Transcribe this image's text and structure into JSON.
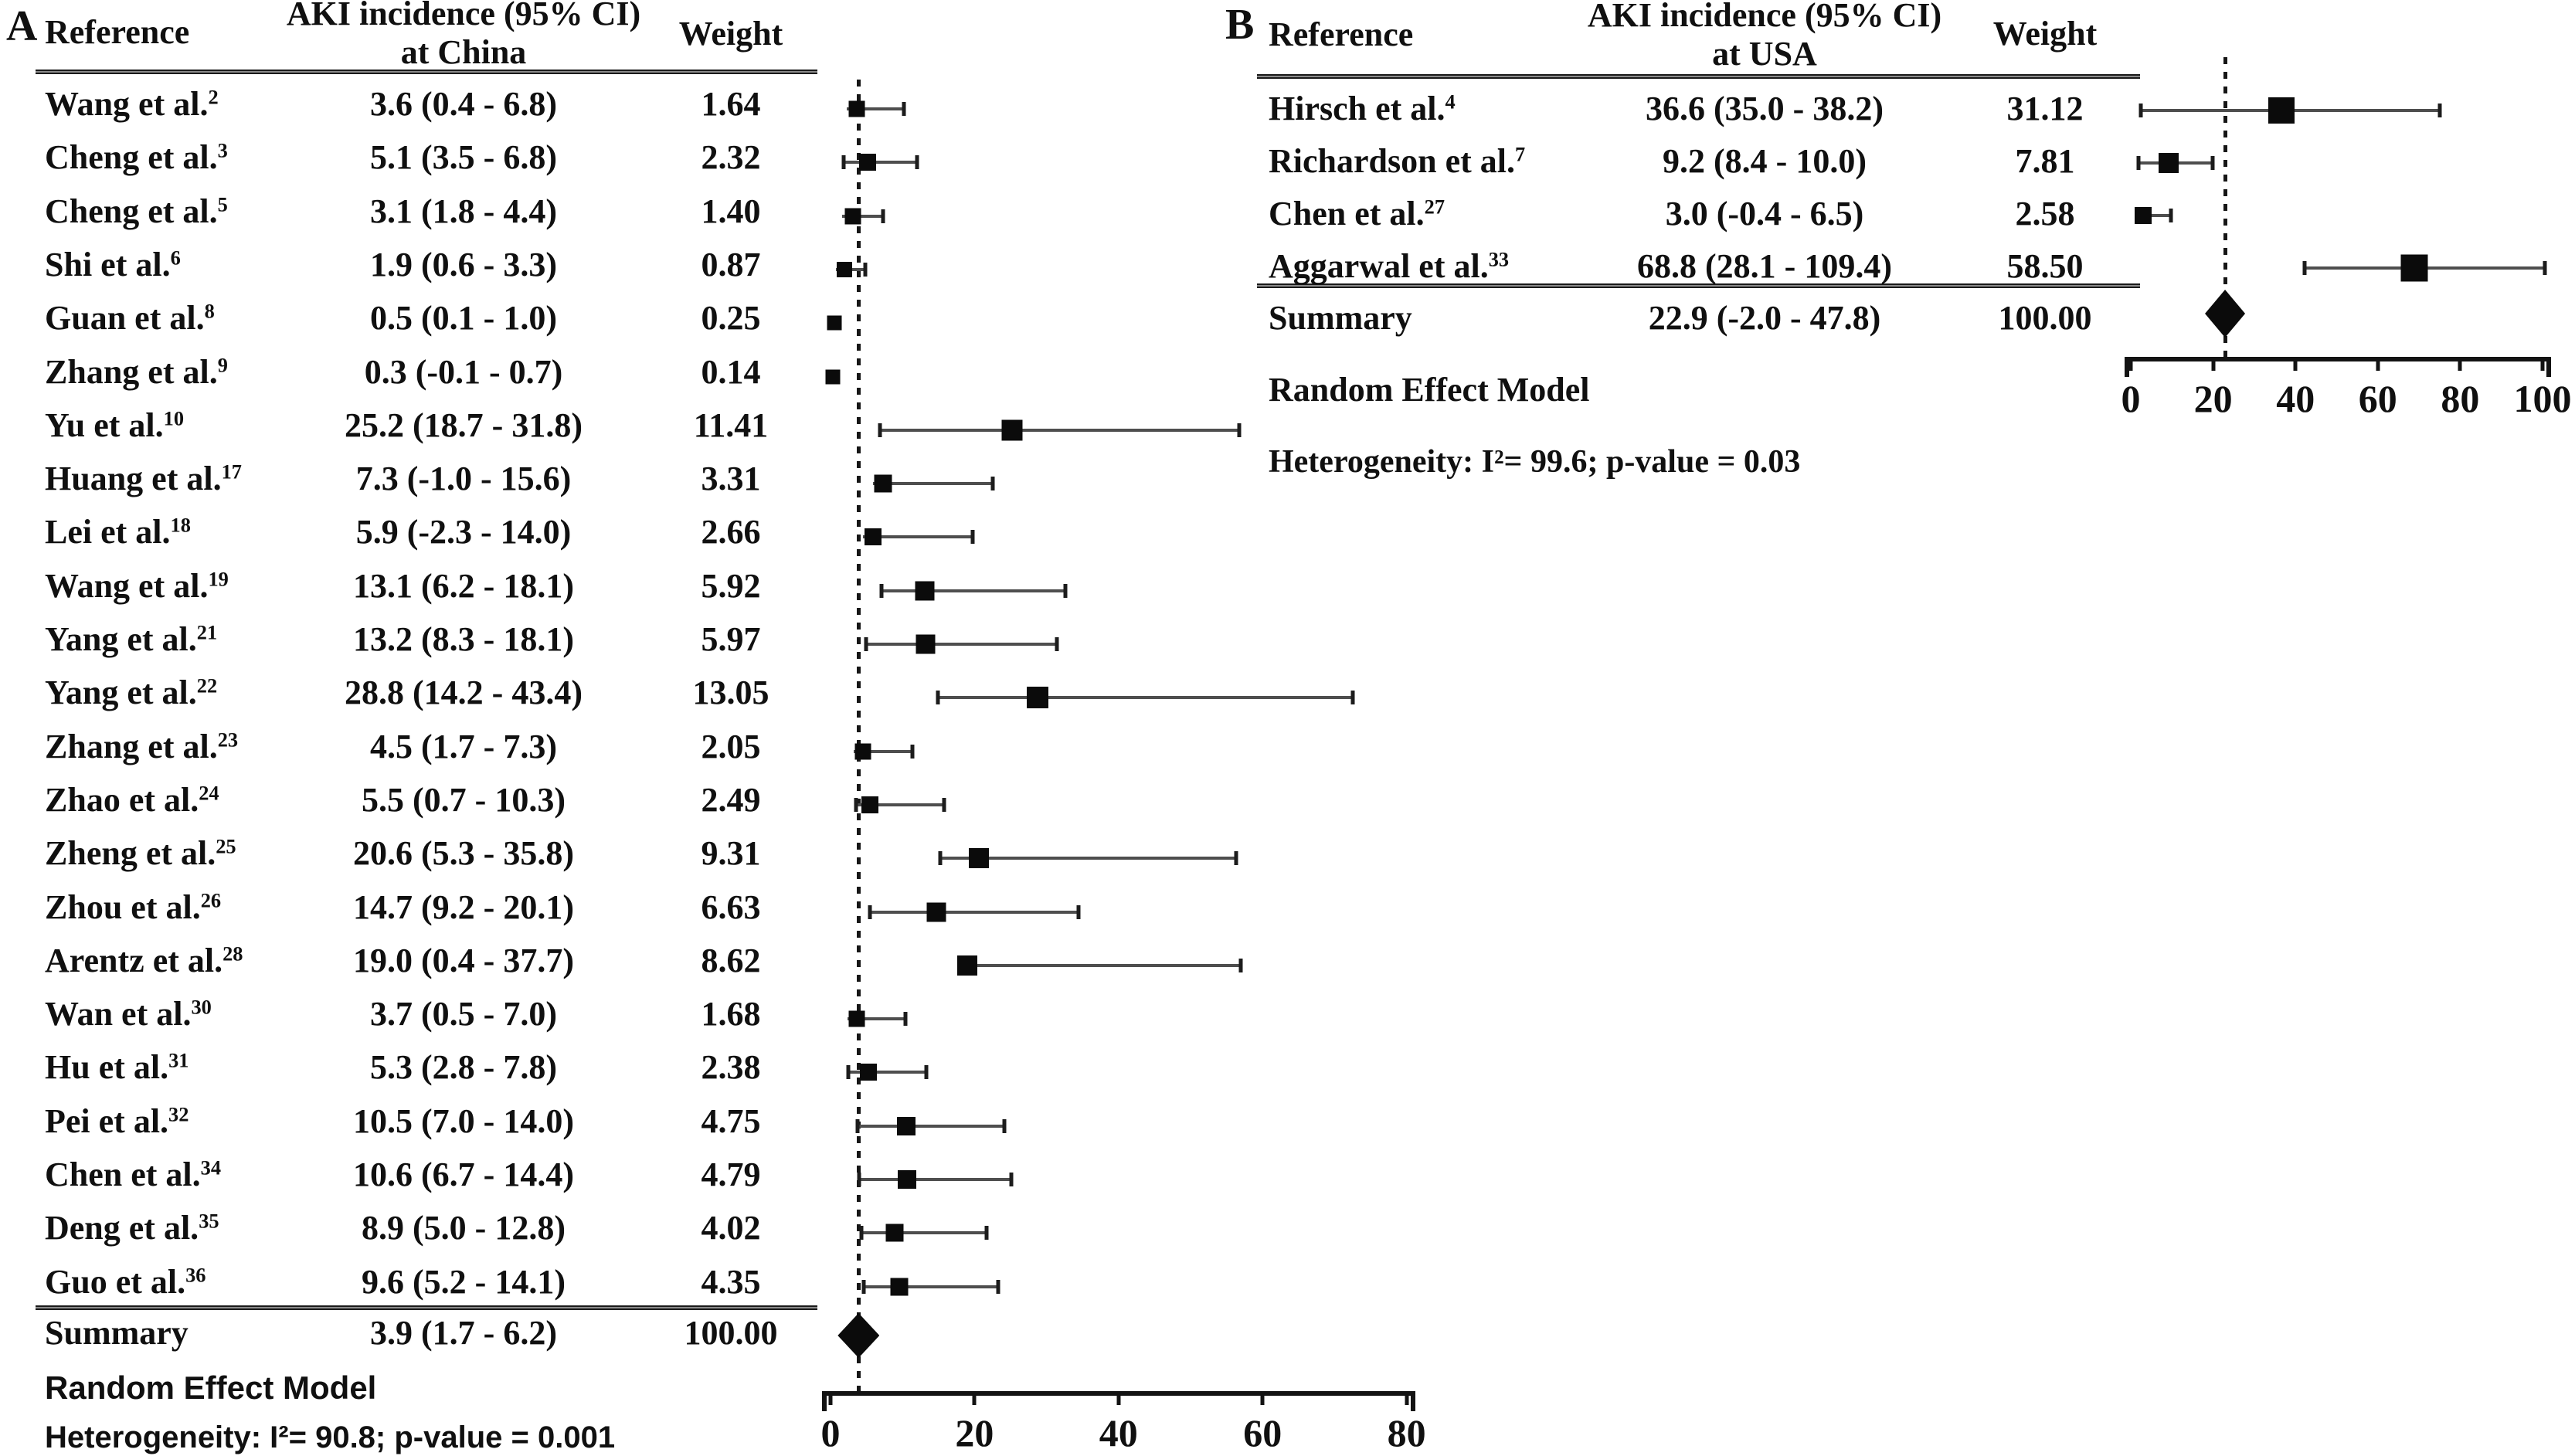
{
  "chart_data": {
    "type": "scatter",
    "variant": "forest-plot-meta-analysis",
    "panels": [
      {
        "panel_label": "A",
        "header": {
          "reference": "Reference",
          "incidence_title": "AKI incidence (95% CI)",
          "incidence_subtitle": "at China",
          "weight": "Weight"
        },
        "axis": {
          "ticks": [
            0,
            20,
            40,
            60,
            80
          ],
          "min": 0,
          "max": 80,
          "grid": false
        },
        "studies": [
          {
            "name": "Wang et al.",
            "sup": "2",
            "incidence_text": "3.6 (0.4 - 6.8)",
            "value": 3.6,
            "ci_lo": 0.4,
            "ci_hi": 6.8,
            "bar_lo": 2.3,
            "bar_hi": 10.4,
            "weight_text": "1.64"
          },
          {
            "name": "Cheng et al.",
            "sup": "3",
            "incidence_text": "5.1 (3.5 - 6.8)",
            "value": 5.1,
            "ci_lo": 3.5,
            "ci_hi": 6.8,
            "bar_lo": 1.6,
            "bar_hi": 12.2,
            "weight_text": "2.32"
          },
          {
            "name": "Cheng et al.",
            "sup": "5",
            "incidence_text": "3.1 (1.8 - 4.4)",
            "value": 3.1,
            "ci_lo": 1.8,
            "ci_hi": 4.4,
            "bar_lo": 1.6,
            "bar_hi": 7.5,
            "weight_text": "1.40"
          },
          {
            "name": "Shi et al.",
            "sup": "6",
            "incidence_text": "1.9 (0.6 - 3.3)",
            "value": 1.9,
            "ci_lo": 0.6,
            "ci_hi": 3.3,
            "bar_lo": 0.8,
            "bar_hi": 5.0,
            "weight_text": "0.87"
          },
          {
            "name": "Guan et al.",
            "sup": "8",
            "incidence_text": "0.5 (0.1 - 1.0)",
            "value": 0.5,
            "ci_lo": 0.1,
            "ci_hi": 1.0,
            "bar_lo": 0.1,
            "bar_hi": 1.3,
            "weight_text": "0.25"
          },
          {
            "name": "Zhang et al.",
            "sup": "9",
            "incidence_text": "0.3 (-0.1 - 0.7)",
            "value": 0.3,
            "ci_lo": -0.1,
            "ci_hi": 0.7,
            "bar_lo": -0.1,
            "bar_hi": 0.9,
            "weight_text": "0.14"
          },
          {
            "name": "Yu et al.",
            "sup": "10",
            "incidence_text": "25.2 (18.7 - 31.8)",
            "value": 25.2,
            "ci_lo": 18.7,
            "ci_hi": 31.8,
            "bar_lo": 6.6,
            "bar_hi": 57.0,
            "weight_text": "11.41"
          },
          {
            "name": "Huang et al.",
            "sup": "17",
            "incidence_text": "7.3 (-1.0 - 15.6)",
            "value": 7.3,
            "ci_lo": -1.0,
            "ci_hi": 15.6,
            "bar_lo": 5.9,
            "bar_hi": 22.8,
            "weight_text": "3.31"
          },
          {
            "name": "Lei et al.",
            "sup": "18",
            "incidence_text": "5.9 (-2.3 - 14.0)",
            "value": 5.9,
            "ci_lo": -2.3,
            "ci_hi": 14.0,
            "bar_lo": 4.5,
            "bar_hi": 20.0,
            "weight_text": "2.66"
          },
          {
            "name": "Wang et al.",
            "sup": "19",
            "incidence_text": "13.1 (6.2 - 18.1)",
            "value": 13.1,
            "ci_lo": 6.2,
            "ci_hi": 18.1,
            "bar_lo": 6.9,
            "bar_hi": 32.8,
            "weight_text": "5.92"
          },
          {
            "name": "Yang et al.",
            "sup": "21",
            "incidence_text": "13.2 (8.3 - 18.1)",
            "value": 13.2,
            "ci_lo": 8.3,
            "ci_hi": 18.1,
            "bar_lo": 4.7,
            "bar_hi": 31.6,
            "weight_text": "5.97"
          },
          {
            "name": "Yang et al.",
            "sup": "22",
            "incidence_text": "28.8 (14.2 - 43.4)",
            "value": 28.8,
            "ci_lo": 14.2,
            "ci_hi": 43.4,
            "bar_lo": 14.7,
            "bar_hi": 72.8,
            "weight_text": "13.05"
          },
          {
            "name": "Zhang et al.",
            "sup": "23",
            "incidence_text": "4.5 (1.7 - 7.3)",
            "value": 4.5,
            "ci_lo": 1.7,
            "ci_hi": 7.3,
            "bar_lo": 3.2,
            "bar_hi": 11.6,
            "weight_text": "2.05"
          },
          {
            "name": "Zhao et al.",
            "sup": "24",
            "incidence_text": "5.5 (0.7 - 10.3)",
            "value": 5.5,
            "ci_lo": 0.7,
            "ci_hi": 10.3,
            "bar_lo": 3.3,
            "bar_hi": 16.0,
            "weight_text": "2.49"
          },
          {
            "name": "Zheng et al.",
            "sup": "25",
            "incidence_text": "20.6 (5.3 - 35.8)",
            "value": 20.6,
            "ci_lo": 5.3,
            "ci_hi": 35.8,
            "bar_lo": 15.0,
            "bar_hi": 56.5,
            "weight_text": "9.31"
          },
          {
            "name": "Zhou et al.",
            "sup": "26",
            "incidence_text": "14.7 (9.2 - 20.1)",
            "value": 14.7,
            "ci_lo": 9.2,
            "ci_hi": 20.1,
            "bar_lo": 5.3,
            "bar_hi": 34.7,
            "weight_text": "6.63"
          },
          {
            "name": "Arentz et al.",
            "sup": "28",
            "incidence_text": "19.0 (0.4 - 37.7)",
            "value": 19.0,
            "ci_lo": 0.4,
            "ci_hi": 37.7,
            "bar_lo": 17.7,
            "bar_hi": 57.2,
            "weight_text": "8.62"
          },
          {
            "name": "Wan et al.",
            "sup": "30",
            "incidence_text": "3.7 (0.5 - 7.0)",
            "value": 3.7,
            "ci_lo": 0.5,
            "ci_hi": 7.0,
            "bar_lo": 2.4,
            "bar_hi": 10.6,
            "weight_text": "1.68"
          },
          {
            "name": "Hu et al.",
            "sup": "31",
            "incidence_text": "5.3 (2.8 - 7.8)",
            "value": 5.3,
            "ci_lo": 2.8,
            "ci_hi": 7.8,
            "bar_lo": 2.2,
            "bar_hi": 13.5,
            "weight_text": "2.38"
          },
          {
            "name": "Pei et al.",
            "sup": "32",
            "incidence_text": "10.5 (7.0 - 14.0)",
            "value": 10.5,
            "ci_lo": 7.0,
            "ci_hi": 14.0,
            "bar_lo": 3.5,
            "bar_hi": 24.4,
            "weight_text": "4.75"
          },
          {
            "name": "Chen et al.",
            "sup": "34",
            "incidence_text": "10.6 (6.7 - 14.4)",
            "value": 10.6,
            "ci_lo": 6.7,
            "ci_hi": 14.4,
            "bar_lo": 3.8,
            "bar_hi": 25.3,
            "weight_text": "4.79"
          },
          {
            "name": "Deng et al.",
            "sup": "35",
            "incidence_text": "8.9 (5.0 - 12.8)",
            "value": 8.9,
            "ci_lo": 5.0,
            "ci_hi": 12.8,
            "bar_lo": 4.1,
            "bar_hi": 21.9,
            "weight_text": "4.02"
          },
          {
            "name": "Guo et al.",
            "sup": "36",
            "incidence_text": "9.6 (5.2 - 14.1)",
            "value": 9.6,
            "ci_lo": 5.2,
            "ci_hi": 14.1,
            "bar_lo": 4.4,
            "bar_hi": 23.5,
            "weight_text": "4.35"
          }
        ],
        "summary": {
          "label": "Summary",
          "incidence_text": "3.9 (1.7 - 6.2)",
          "value": 3.9,
          "ci_lo": 1.7,
          "ci_hi": 6.2,
          "weight_text": "100.00"
        },
        "model_label": "Random Effect Model",
        "heterogeneity_text": "Heterogeneity: I²= 90.8; p-value = 0.001"
      },
      {
        "panel_label": "B",
        "header": {
          "reference": "Reference",
          "incidence_title": "AKI incidence (95% CI)",
          "incidence_subtitle": "at USA",
          "weight": "Weight"
        },
        "axis": {
          "ticks": [
            0,
            20,
            40,
            60,
            80,
            100
          ],
          "min": 0,
          "max": 100,
          "grid": false
        },
        "studies": [
          {
            "name": "Hirsch et al.",
            "sup": "4",
            "incidence_text": "36.6 (35.0 - 38.2)",
            "value": 36.6,
            "ci_lo": 35.0,
            "ci_hi": 38.2,
            "bar_lo": 2.1,
            "bar_hi": 75.4,
            "weight_text": "31.12"
          },
          {
            "name": "Richardson et al.",
            "sup": "7",
            "incidence_text": "9.2 (8.4 - 10.0)",
            "value": 9.2,
            "ci_lo": 8.4,
            "ci_hi": 10.0,
            "bar_lo": 1.5,
            "bar_hi": 20.3,
            "weight_text": "7.81"
          },
          {
            "name": "Chen et al.",
            "sup": "27",
            "incidence_text": "3.0 (-0.4 - 6.5)",
            "value": 3.0,
            "ci_lo": -0.4,
            "ci_hi": 6.5,
            "bar_lo": 2.0,
            "bar_hi": 10.1,
            "weight_text": "2.58"
          },
          {
            "name": "Aggarwal et al.",
            "sup": "33",
            "incidence_text": "68.8 (28.1 - 109.4)",
            "value": 68.8,
            "ci_lo": 28.1,
            "ci_hi": 109.4,
            "bar_lo": 41.8,
            "bar_hi": 100.9,
            "weight_text": "58.50"
          }
        ],
        "summary": {
          "label": "Summary",
          "incidence_text": "22.9 (-2.0 - 47.8)",
          "value": 22.9,
          "ci_lo": -2.0,
          "ci_hi": 47.8,
          "weight_text": "100.00"
        },
        "model_label": "Random Effect Model",
        "heterogeneity_text": "Heterogeneity: I²= 99.6; p-value = 0.03"
      }
    ]
  }
}
